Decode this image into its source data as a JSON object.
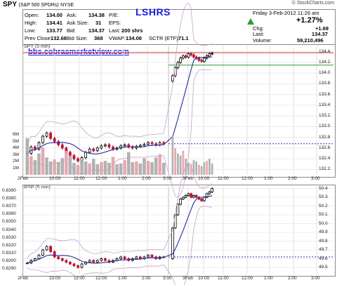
{
  "header": {
    "symbol": "SPY",
    "description": "(S&P 500 SPDRs)",
    "exchange": "NYSE",
    "credit": "© StockCharts.com",
    "watermark": "LSHRS"
  },
  "quote": {
    "open_label": "Open:",
    "open": "134.00",
    "high_label": "High:",
    "high": "134.41",
    "low_label": "Low:",
    "low": "133.77",
    "prev_close_label": "Prev Close:",
    "prev_close": "132.68",
    "ask_label": "Ask:",
    "ask": "134.38",
    "ask_size_label": "Ask Size:",
    "ask_size": "31",
    "bid_label": "Bid:",
    "bid": "134.37",
    "bid_size_label": "Bid Size:",
    "bid_size": "368",
    "pe_label": "P/E:",
    "pe": "",
    "eps_label": "EPS:",
    "eps": "",
    "last_label": "Last:",
    "last_shares": "200 shrs",
    "vwap_label": "VWAP:",
    "vwap": "134.08",
    "sctr_label": "SCTR (ETF):",
    "sctr": "71.1",
    "datetime": "Friday  3-Feb-2012  11:26 am",
    "change_pct": "+1.27%",
    "chg_label": "Chg:",
    "chg": "+1.69",
    "last2_label": "Last:",
    "last2": "134.37",
    "volume_label": "Volume:",
    "volume": "59,210,496"
  },
  "overlay_text": "bbs.cobrasmarketview.com",
  "panels": {
    "price_tag": "SPY (5 min)",
    "rsp_tag": "RSP (5 min)"
  },
  "colors": {
    "bull": "#000000",
    "bear": "#cc1133",
    "ma": "#2a2a9a",
    "bollinger": "#c9a0c9",
    "volume_bar": "#aaaaaa",
    "volume_bar_red": "#e6a0a8",
    "resistance": "#d43030",
    "support": "#2a9d2a",
    "dotted_level": "#2a2acc",
    "title_blue": "#1a1adf"
  },
  "chart_data": [
    {
      "type": "candlestick",
      "title": "SPY (5 min)",
      "categories": [
        "2Feb",
        "10:00",
        "11:00",
        "12:00",
        "1:00",
        "2:00",
        "3:00",
        "3Feb",
        "10:00",
        "11:00",
        "12:00",
        "1:00",
        "2:00",
        "3:00"
      ],
      "y_ticks": [
        132.2,
        132.4,
        132.6,
        132.8,
        133.0,
        133.2,
        133.4,
        133.6,
        133.8,
        134.0,
        134.2,
        134.4
      ],
      "ylim": [
        132.1,
        134.5
      ],
      "volume_ticks": [
        "1M",
        "2M",
        "3M",
        "4M",
        "5M",
        "6M"
      ],
      "levels": {
        "resistance": 134.38,
        "support": 134.15,
        "dotted": 132.68
      },
      "close_series_day1": [
        132.5,
        132.62,
        132.58,
        132.7,
        132.82,
        132.88,
        132.78,
        132.72,
        132.66,
        132.6,
        132.52,
        132.46,
        132.4,
        132.36,
        132.42,
        132.52,
        132.58,
        132.55,
        132.6,
        132.64,
        132.66,
        132.62,
        132.58,
        132.6,
        132.64,
        132.66,
        132.62,
        132.6,
        132.63,
        132.65,
        132.67,
        132.7,
        132.68,
        132.66,
        132.7,
        132.68
      ],
      "close_series_day2": [
        133.95,
        134.1,
        134.2,
        134.28,
        134.32,
        134.3,
        134.36,
        134.34,
        134.3,
        134.28,
        134.24,
        134.22,
        134.28,
        134.32,
        134.36,
        134.37
      ]
    },
    {
      "type": "candlestick",
      "title": "RSP (5 min)",
      "categories": [
        "2Feb",
        "10:00",
        "11:00",
        "12:00",
        "1:00",
        "2:00",
        "3:00",
        "3Feb",
        "10:00",
        "11:00",
        "12:00",
        "1:00",
        "2:00",
        "3:00"
      ],
      "y_ticks_left": [
        0.829,
        0.83,
        0.831,
        0.832,
        0.833,
        0.834,
        0.835,
        0.836,
        0.837,
        0.838,
        0.839
      ],
      "y_ticks_right": [
        49.5,
        49.6,
        49.7,
        49.8,
        49.9,
        50.0,
        50.1,
        50.2,
        50.3,
        50.4
      ],
      "ylim": [
        49.42,
        50.42
      ],
      "levels": {
        "dotted": 49.62
      },
      "close_series_day1": [
        49.55,
        49.58,
        49.6,
        49.64,
        49.7,
        49.74,
        49.68,
        49.62,
        49.6,
        49.58,
        49.56,
        49.54,
        49.52,
        49.5,
        49.54,
        49.56,
        49.58,
        49.56,
        49.58,
        49.6,
        49.58,
        49.56,
        49.58,
        49.6,
        49.62,
        49.6,
        49.58,
        49.6,
        49.62,
        49.6,
        49.62,
        49.64,
        49.62,
        49.6,
        49.62,
        49.62
      ],
      "close_series_day2": [
        49.95,
        50.1,
        50.22,
        50.28,
        50.3,
        50.32,
        50.34,
        50.3,
        50.32,
        50.3,
        50.28,
        50.26,
        50.3,
        50.34,
        50.36,
        50.4
      ]
    }
  ]
}
